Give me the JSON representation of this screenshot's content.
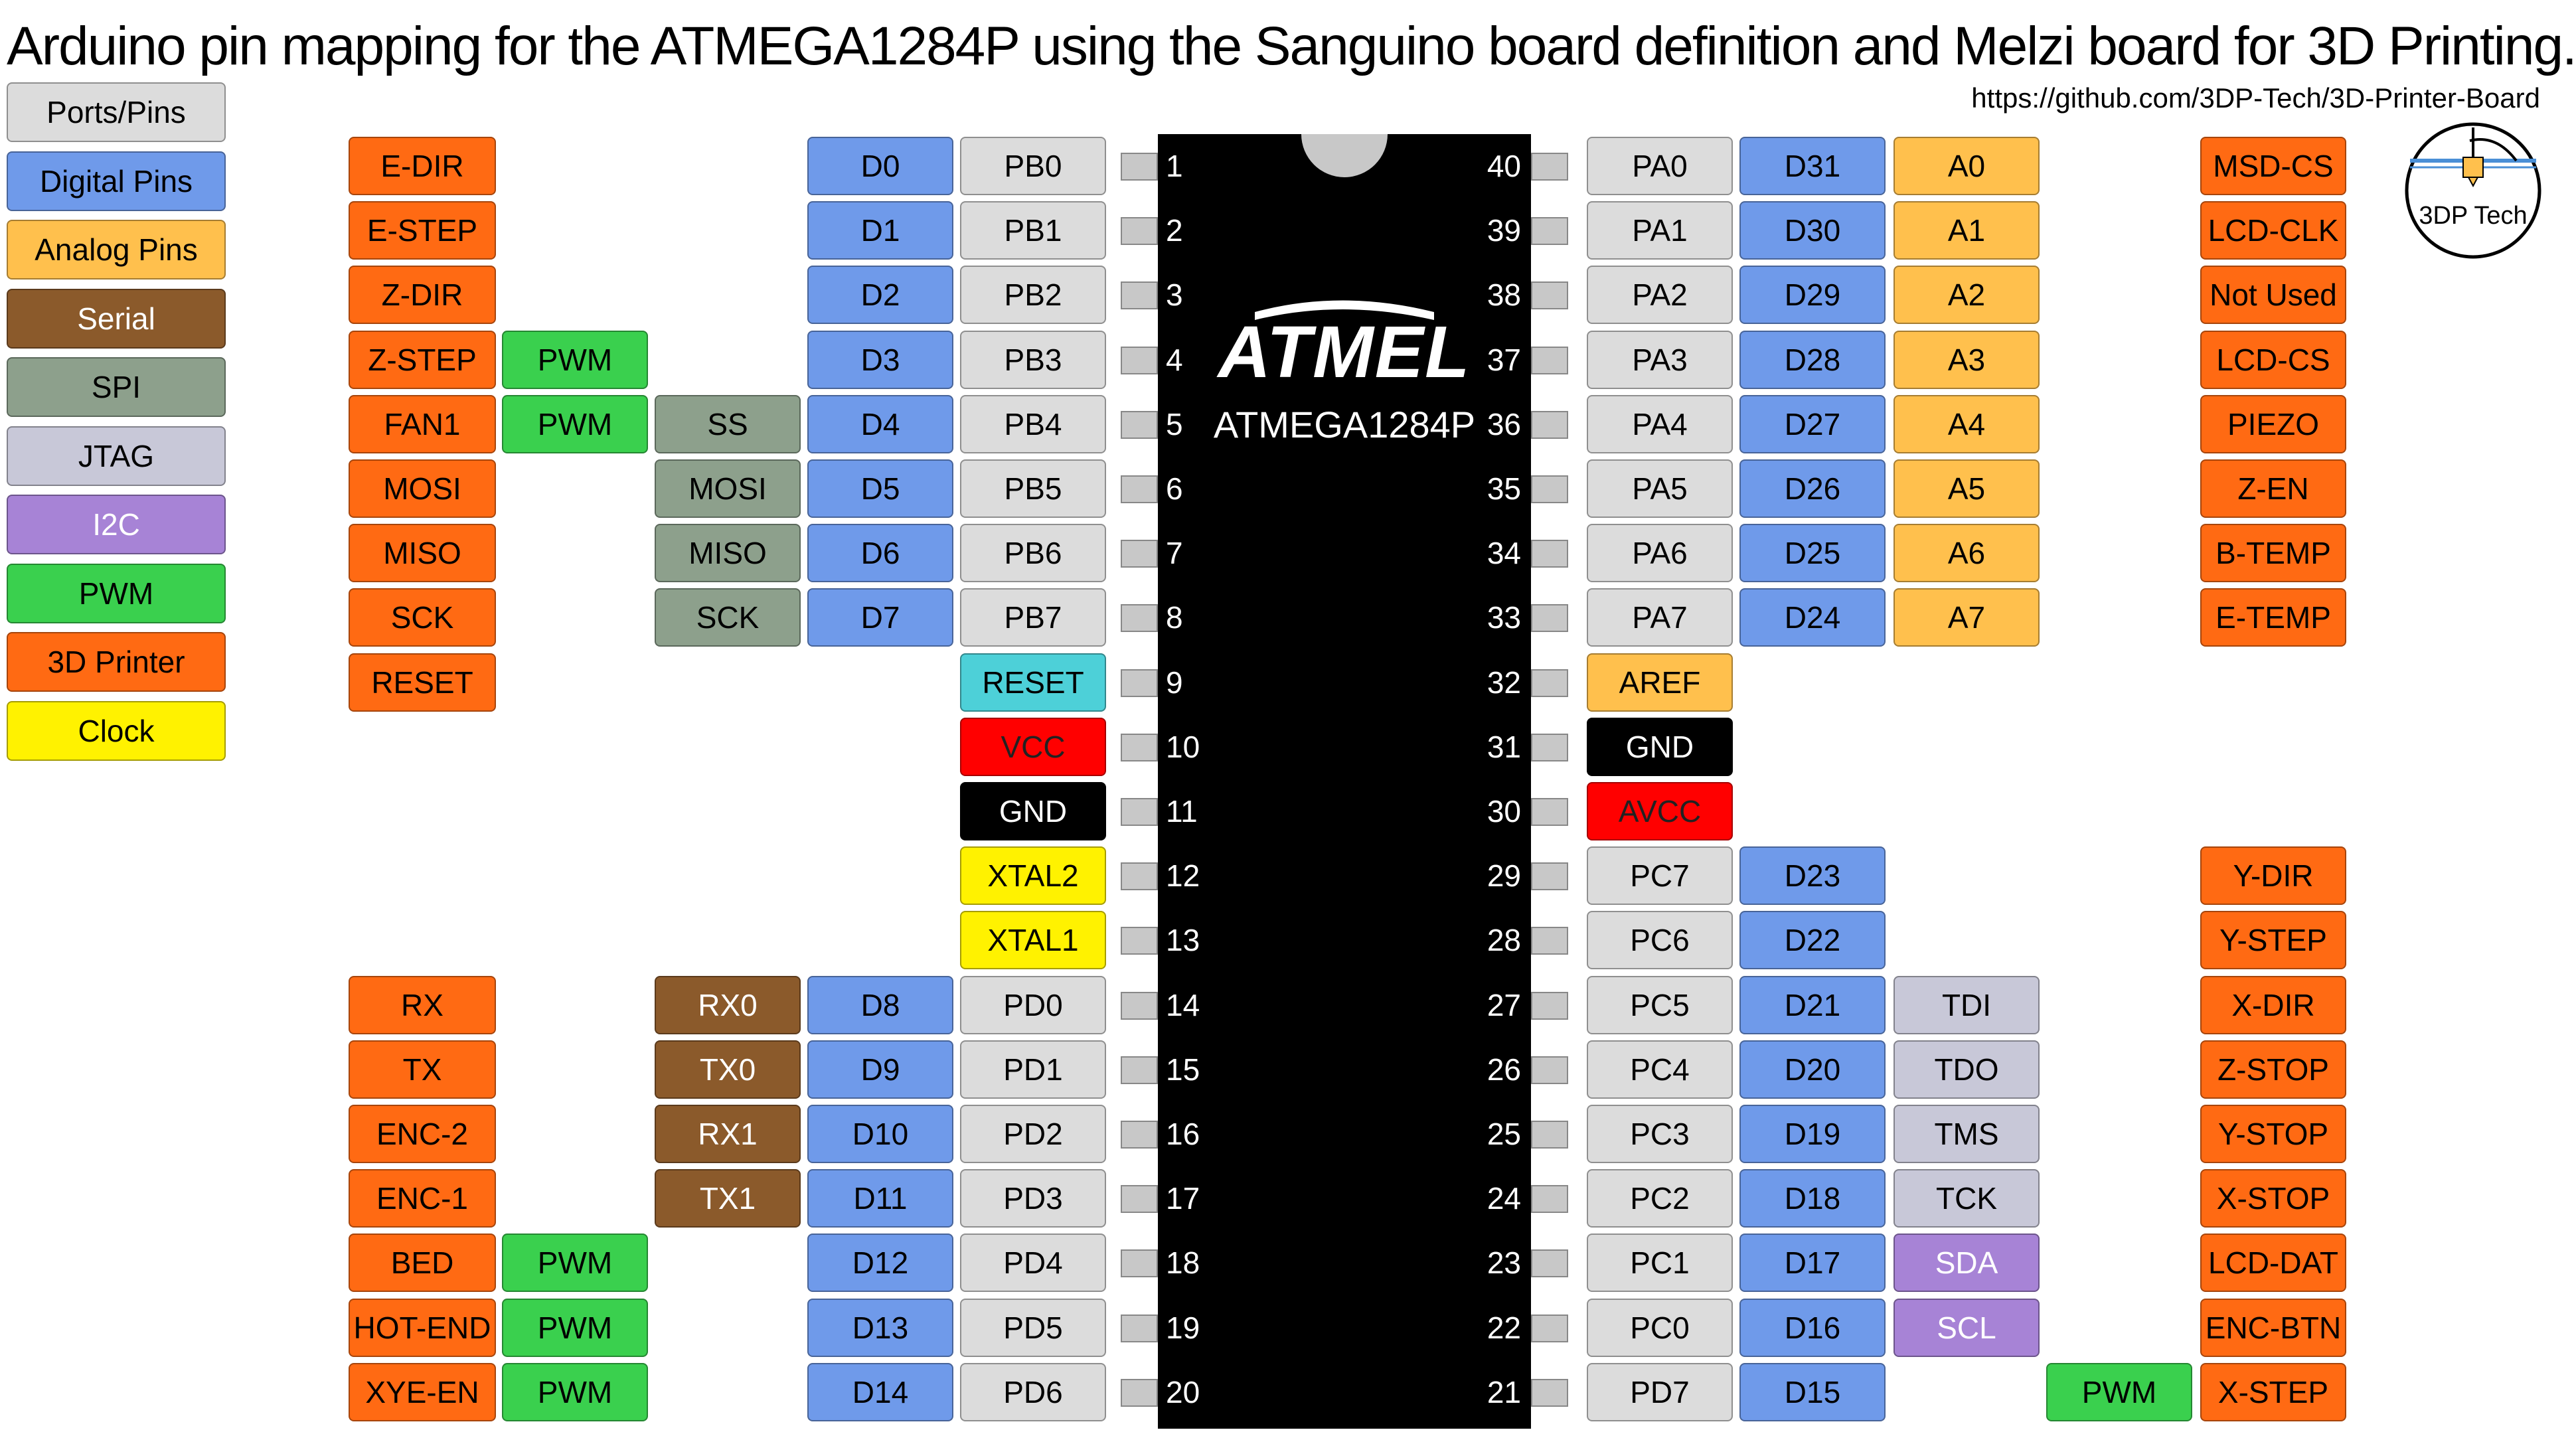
{
  "title": "Arduino pin mapping for the ATMEGA1284P using the Sanguino board definition and Melzi board for 3D Printing.",
  "url": "https://github.com/3DP-Tech/3D-Printer-Board",
  "chip": {
    "logo": "ATMEL",
    "name": "ATMEGA1284P"
  },
  "brand_logo": "3DP Tech",
  "colors": {
    "port": "#dcdcdc",
    "digital": "#6f9aea",
    "analog": "#ffc04d",
    "serial": "#8b5a2b",
    "spi": "#8da08c",
    "jtag": "#c8c8d8",
    "i2c": "#a783d6",
    "pwm": "#3ad04e",
    "printer": "#ff6a13",
    "clock": "#fff200",
    "reset": "#4dd0d8",
    "vcc": "#ff0000",
    "gnd": "#000000",
    "aref": "#ffc04d"
  },
  "legend": [
    {
      "label": "Ports/Pins",
      "color": "port"
    },
    {
      "label": "Digital Pins",
      "color": "digital"
    },
    {
      "label": "Analog Pins",
      "color": "analog"
    },
    {
      "label": "Serial",
      "color": "serial"
    },
    {
      "label": "SPI",
      "color": "spi"
    },
    {
      "label": "JTAG",
      "color": "jtag"
    },
    {
      "label": "I2C",
      "color": "i2c"
    },
    {
      "label": "PWM",
      "color": "pwm"
    },
    {
      "label": "3D Printer",
      "color": "printer"
    },
    {
      "label": "Clock",
      "color": "clock"
    }
  ],
  "left_pins": [
    {
      "pin": "1",
      "port": "PB0",
      "digital": "D0",
      "func": "",
      "pwm": "",
      "printer": "E-DIR"
    },
    {
      "pin": "2",
      "port": "PB1",
      "digital": "D1",
      "func": "",
      "pwm": "",
      "printer": "E-STEP"
    },
    {
      "pin": "3",
      "port": "PB2",
      "digital": "D2",
      "func": "",
      "pwm": "",
      "printer": "Z-DIR"
    },
    {
      "pin": "4",
      "port": "PB3",
      "digital": "D3",
      "func": "",
      "pwm": "PWM",
      "printer": "Z-STEP"
    },
    {
      "pin": "5",
      "port": "PB4",
      "digital": "D4",
      "func": "SS",
      "func_color": "spi",
      "pwm": "PWM",
      "printer": "FAN1"
    },
    {
      "pin": "6",
      "port": "PB5",
      "digital": "D5",
      "func": "MOSI",
      "func_color": "spi",
      "pwm": "",
      "printer": "MOSI"
    },
    {
      "pin": "7",
      "port": "PB6",
      "digital": "D6",
      "func": "MISO",
      "func_color": "spi",
      "pwm": "",
      "printer": "MISO"
    },
    {
      "pin": "8",
      "port": "PB7",
      "digital": "D7",
      "func": "SCK",
      "func_color": "spi",
      "pwm": "",
      "printer": "SCK"
    },
    {
      "pin": "9",
      "port": "RESET",
      "port_color": "reset",
      "digital": "",
      "func": "",
      "pwm": "",
      "printer": "RESET"
    },
    {
      "pin": "10",
      "port": "VCC",
      "port_color": "vcc",
      "digital": "",
      "func": "",
      "pwm": "",
      "printer": ""
    },
    {
      "pin": "11",
      "port": "GND",
      "port_color": "gnd",
      "digital": "",
      "func": "",
      "pwm": "",
      "printer": ""
    },
    {
      "pin": "12",
      "port": "XTAL2",
      "port_color": "clock",
      "digital": "",
      "func": "",
      "pwm": "",
      "printer": ""
    },
    {
      "pin": "13",
      "port": "XTAL1",
      "port_color": "clock",
      "digital": "",
      "func": "",
      "pwm": "",
      "printer": ""
    },
    {
      "pin": "14",
      "port": "PD0",
      "digital": "D8",
      "func": "RX0",
      "func_color": "serial",
      "pwm": "",
      "printer": "RX"
    },
    {
      "pin": "15",
      "port": "PD1",
      "digital": "D9",
      "func": "TX0",
      "func_color": "serial",
      "pwm": "",
      "printer": "TX"
    },
    {
      "pin": "16",
      "port": "PD2",
      "digital": "D10",
      "func": "RX1",
      "func_color": "serial",
      "pwm": "",
      "printer": "ENC-2"
    },
    {
      "pin": "17",
      "port": "PD3",
      "digital": "D11",
      "func": "TX1",
      "func_color": "serial",
      "pwm": "",
      "printer": "ENC-1"
    },
    {
      "pin": "18",
      "port": "PD4",
      "digital": "D12",
      "func": "",
      "pwm": "PWM",
      "printer": "BED"
    },
    {
      "pin": "19",
      "port": "PD5",
      "digital": "D13",
      "func": "",
      "pwm": "PWM",
      "printer": "HOT-END"
    },
    {
      "pin": "20",
      "port": "PD6",
      "digital": "D14",
      "func": "",
      "pwm": "PWM",
      "printer": "XYE-EN"
    }
  ],
  "right_pins": [
    {
      "pin": "40",
      "port": "PA0",
      "digital": "D31",
      "analog": "A0",
      "func": "",
      "pwm": "",
      "printer": "MSD-CS"
    },
    {
      "pin": "39",
      "port": "PA1",
      "digital": "D30",
      "analog": "A1",
      "func": "",
      "pwm": "",
      "printer": "LCD-CLK"
    },
    {
      "pin": "38",
      "port": "PA2",
      "digital": "D29",
      "analog": "A2",
      "func": "",
      "pwm": "",
      "printer": "Not Used"
    },
    {
      "pin": "37",
      "port": "PA3",
      "digital": "D28",
      "analog": "A3",
      "func": "",
      "pwm": "",
      "printer": "LCD-CS"
    },
    {
      "pin": "36",
      "port": "PA4",
      "digital": "D27",
      "analog": "A4",
      "func": "",
      "pwm": "",
      "printer": "PIEZO"
    },
    {
      "pin": "35",
      "port": "PA5",
      "digital": "D26",
      "analog": "A5",
      "func": "",
      "pwm": "",
      "printer": "Z-EN"
    },
    {
      "pin": "34",
      "port": "PA6",
      "digital": "D25",
      "analog": "A6",
      "func": "",
      "pwm": "",
      "printer": "B-TEMP"
    },
    {
      "pin": "33",
      "port": "PA7",
      "digital": "D24",
      "analog": "A7",
      "func": "",
      "pwm": "",
      "printer": "E-TEMP"
    },
    {
      "pin": "32",
      "port": "AREF",
      "port_color": "aref",
      "digital": "",
      "analog": "",
      "func": "",
      "pwm": "",
      "printer": ""
    },
    {
      "pin": "31",
      "port": "GND",
      "port_color": "gnd",
      "digital": "",
      "analog": "",
      "func": "",
      "pwm": "",
      "printer": ""
    },
    {
      "pin": "30",
      "port": "AVCC",
      "port_color": "vcc",
      "digital": "",
      "analog": "",
      "func": "",
      "pwm": "",
      "printer": ""
    },
    {
      "pin": "29",
      "port": "PC7",
      "digital": "D23",
      "analog": "",
      "func": "",
      "pwm": "",
      "printer": "Y-DIR"
    },
    {
      "pin": "28",
      "port": "PC6",
      "digital": "D22",
      "analog": "",
      "func": "",
      "pwm": "",
      "printer": "Y-STEP"
    },
    {
      "pin": "27",
      "port": "PC5",
      "digital": "D21",
      "analog": "",
      "func": "TDI",
      "func_color": "jtag",
      "pwm": "",
      "printer": "X-DIR"
    },
    {
      "pin": "26",
      "port": "PC4",
      "digital": "D20",
      "analog": "",
      "func": "TDO",
      "func_color": "jtag",
      "pwm": "",
      "printer": "Z-STOP"
    },
    {
      "pin": "25",
      "port": "PC3",
      "digital": "D19",
      "analog": "",
      "func": "TMS",
      "func_color": "jtag",
      "pwm": "",
      "printer": "Y-STOP"
    },
    {
      "pin": "24",
      "port": "PC2",
      "digital": "D18",
      "analog": "",
      "func": "TCK",
      "func_color": "jtag",
      "pwm": "",
      "printer": "X-STOP"
    },
    {
      "pin": "23",
      "port": "PC1",
      "digital": "D17",
      "analog": "",
      "func": "SDA",
      "func_color": "i2c",
      "pwm": "",
      "printer": "LCD-DAT"
    },
    {
      "pin": "22",
      "port": "PC0",
      "digital": "D16",
      "analog": "",
      "func": "SCL",
      "func_color": "i2c",
      "pwm": "",
      "printer": "ENC-BTN"
    },
    {
      "pin": "21",
      "port": "PD7",
      "digital": "D15",
      "analog": "",
      "func": "",
      "pwm": "PWM",
      "printer": "X-STEP"
    }
  ]
}
